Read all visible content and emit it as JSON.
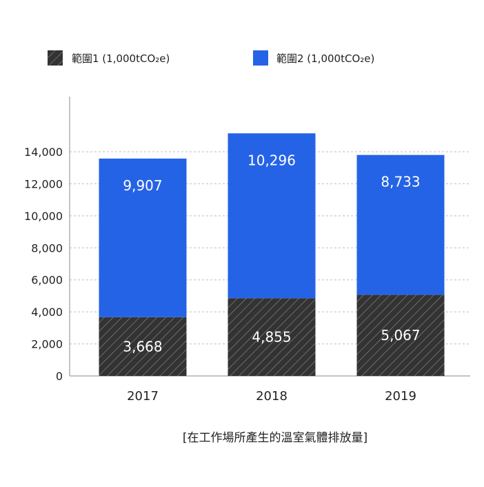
{
  "chart_data": {
    "type": "bar",
    "stacked": true,
    "categories": [
      "2017",
      "2018",
      "2019"
    ],
    "series": [
      {
        "name": "範圍1 (1,000tCO₂e)",
        "values": [
          3668,
          4855,
          5067
        ],
        "labels": [
          "3,668",
          "4,855",
          "5,067"
        ],
        "color": "#333333",
        "pattern": "hatch"
      },
      {
        "name": "範圍2 (1,000tCO₂e)",
        "values": [
          9907,
          10296,
          8733
        ],
        "labels": [
          "9,907",
          "10,296",
          "8,733"
        ],
        "color": "#2563e6"
      }
    ],
    "yticks": [
      0,
      2000,
      4000,
      6000,
      8000,
      10000,
      12000,
      14000
    ],
    "ytick_labels": [
      "0",
      "2,000",
      "4,000",
      "6,000",
      "8,000",
      "10,000",
      "12,000",
      "14,000"
    ],
    "ylim": [
      0,
      17000
    ],
    "grid": "horizontal-dashed",
    "legend_position": "top"
  },
  "caption": "[在工作場所產生的溫室氣體排放量]"
}
